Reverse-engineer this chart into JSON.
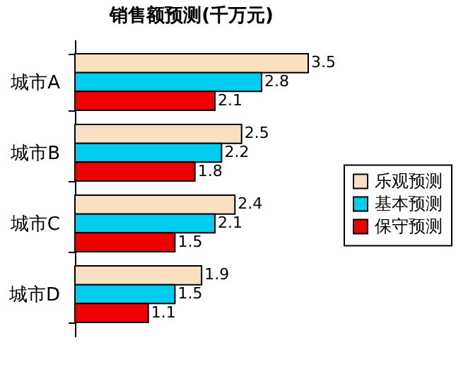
{
  "chart_data": {
    "type": "bar",
    "orientation": "horizontal",
    "title": "销售额预测(千万元)",
    "categories": [
      "城市A",
      "城市B",
      "城市C",
      "城市D"
    ],
    "series": [
      {
        "name": "乐观预测",
        "color": "#f8e0c0",
        "values": [
          3.5,
          2.5,
          2.4,
          1.9
        ]
      },
      {
        "name": "基本预测",
        "color": "#00ccee",
        "values": [
          2.8,
          2.2,
          2.1,
          1.5
        ]
      },
      {
        "name": "保守预测",
        "color": "#ee0000",
        "values": [
          2.1,
          1.8,
          1.5,
          1.1
        ]
      }
    ],
    "data_labels": true,
    "legend": "right",
    "grid": false
  }
}
